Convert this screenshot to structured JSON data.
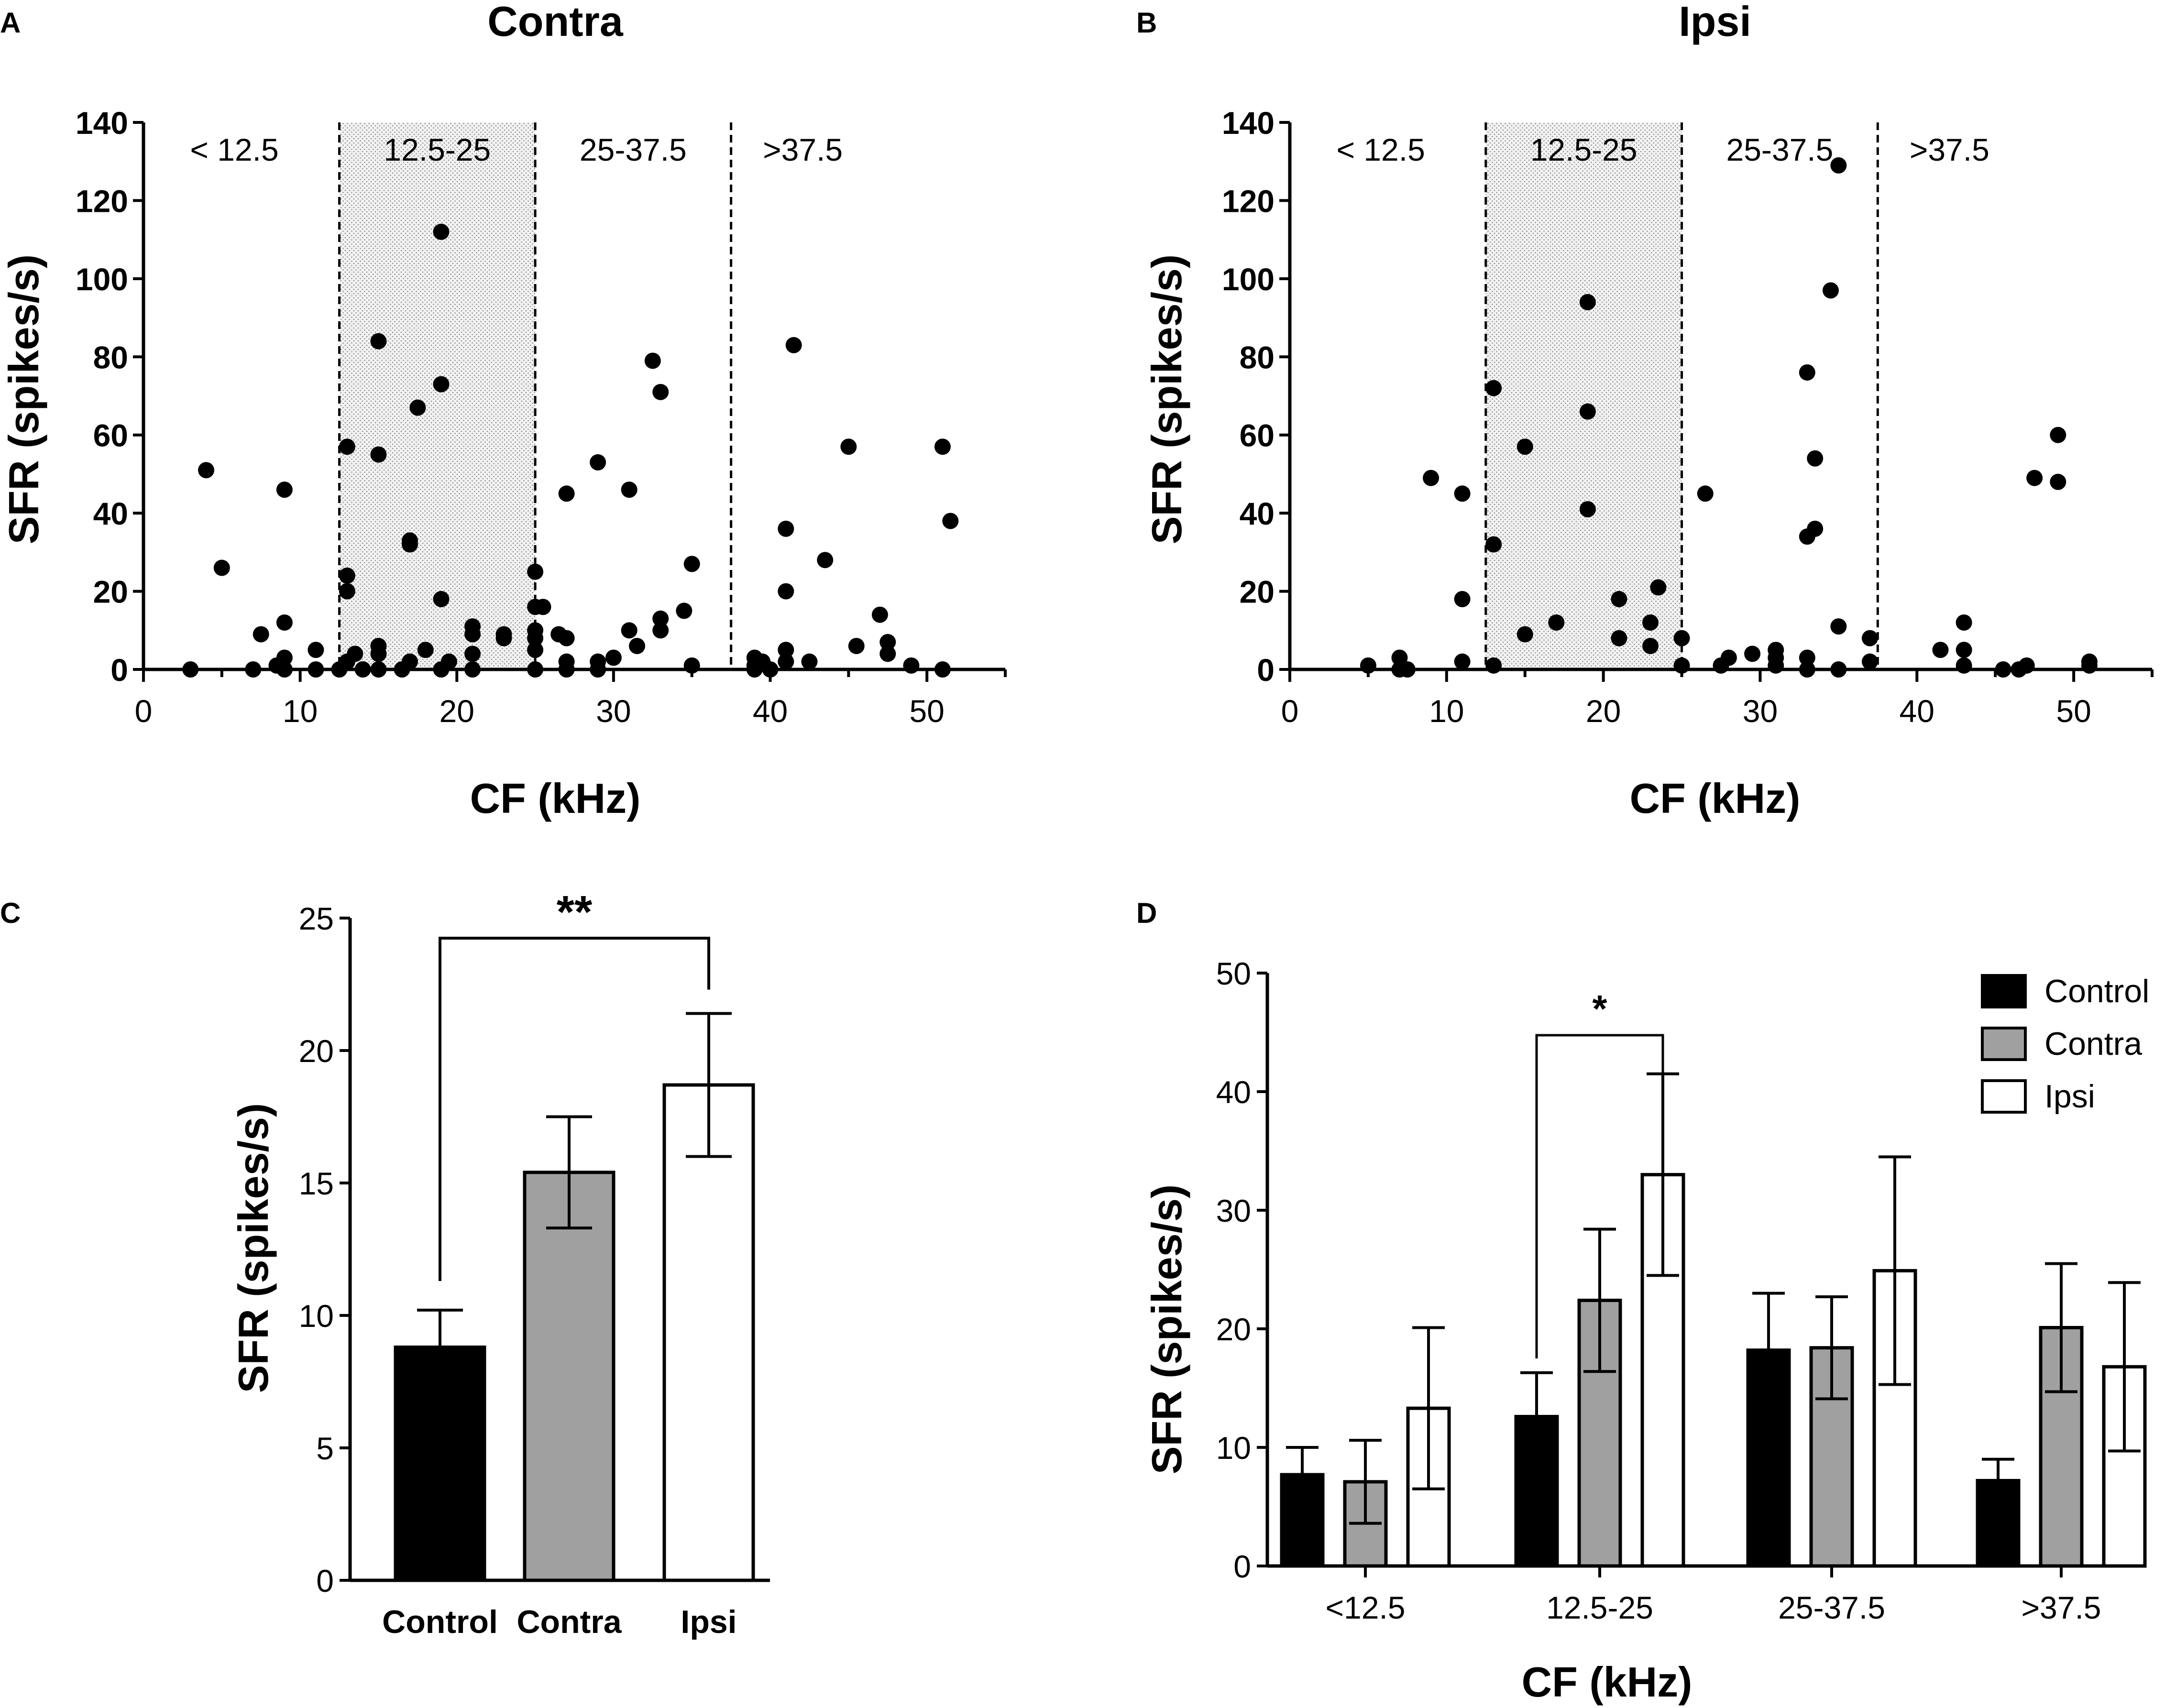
{
  "chart_data": [
    {
      "panel": "A",
      "type": "scatter",
      "title": "Contra",
      "xlabel": "CF (kHz)",
      "ylabel": "SFR (spikes/s)",
      "xlim": [
        0,
        55
      ],
      "ylim": [
        0,
        140
      ],
      "xticks": [
        "0",
        "10",
        "20",
        "30",
        "40",
        "50"
      ],
      "yticks": [
        "0",
        "20",
        "40",
        "60",
        "80",
        "100",
        "120",
        "140"
      ],
      "regions": [
        "< 12.5",
        "12.5-25",
        "25-37.5",
        ">37.5"
      ],
      "region_bounds": [
        12.5,
        25,
        37.5
      ],
      "shaded_region": [
        12.5,
        25
      ],
      "points": [
        [
          3,
          0
        ],
        [
          4,
          51
        ],
        [
          5,
          26
        ],
        [
          7,
          0
        ],
        [
          7.5,
          9
        ],
        [
          8.5,
          1
        ],
        [
          9,
          46
        ],
        [
          9,
          12
        ],
        [
          9,
          3
        ],
        [
          9,
          0
        ],
        [
          11,
          5
        ],
        [
          11,
          0
        ],
        [
          12.5,
          0
        ],
        [
          13,
          57
        ],
        [
          13,
          24
        ],
        [
          13,
          20
        ],
        [
          13,
          2
        ],
        [
          13.5,
          4
        ],
        [
          14,
          0
        ],
        [
          15,
          84
        ],
        [
          15,
          55
        ],
        [
          15,
          6
        ],
        [
          15,
          4
        ],
        [
          15,
          0
        ],
        [
          16.5,
          0
        ],
        [
          17,
          33
        ],
        [
          17,
          32
        ],
        [
          17,
          2
        ],
        [
          17.5,
          67
        ],
        [
          18,
          5
        ],
        [
          19,
          112
        ],
        [
          19,
          73
        ],
        [
          19,
          18
        ],
        [
          19,
          0
        ],
        [
          19.5,
          2
        ],
        [
          21,
          11
        ],
        [
          21,
          9
        ],
        [
          21,
          4
        ],
        [
          21,
          0
        ],
        [
          23,
          9
        ],
        [
          23,
          8
        ],
        [
          25,
          25
        ],
        [
          25,
          16
        ],
        [
          25,
          10
        ],
        [
          25,
          8
        ],
        [
          25,
          5
        ],
        [
          25,
          0
        ],
        [
          25.5,
          16
        ],
        [
          26.5,
          9
        ],
        [
          27,
          45
        ],
        [
          27,
          8
        ],
        [
          27,
          2
        ],
        [
          27,
          0
        ],
        [
          29,
          53
        ],
        [
          29,
          2
        ],
        [
          29,
          0
        ],
        [
          30,
          3
        ],
        [
          31,
          46
        ],
        [
          31,
          10
        ],
        [
          31.5,
          6
        ],
        [
          32.5,
          79
        ],
        [
          33,
          71
        ],
        [
          33,
          13
        ],
        [
          33,
          10
        ],
        [
          34.5,
          15
        ],
        [
          35,
          27
        ],
        [
          35,
          1
        ],
        [
          39,
          3
        ],
        [
          39,
          1
        ],
        [
          39,
          0
        ],
        [
          39.5,
          2
        ],
        [
          40,
          0
        ],
        [
          41,
          36
        ],
        [
          41,
          20
        ],
        [
          41,
          5
        ],
        [
          41,
          2
        ],
        [
          41.5,
          83
        ],
        [
          42.5,
          2
        ],
        [
          43.5,
          28
        ],
        [
          45,
          57
        ],
        [
          45.5,
          6
        ],
        [
          47,
          14
        ],
        [
          47.5,
          7
        ],
        [
          47.5,
          4
        ],
        [
          49,
          1
        ],
        [
          51,
          57
        ],
        [
          51,
          0
        ],
        [
          51.5,
          38
        ]
      ]
    },
    {
      "panel": "B",
      "type": "scatter",
      "title": "Ipsi",
      "xlabel": "CF (kHz)",
      "ylabel": "SFR (spikes/s)",
      "xlim": [
        0,
        55
      ],
      "ylim": [
        0,
        140
      ],
      "xticks": [
        "0",
        "10",
        "20",
        "30",
        "40",
        "50"
      ],
      "yticks": [
        "0",
        "20",
        "40",
        "60",
        "80",
        "100",
        "120",
        "140"
      ],
      "regions": [
        "< 12.5",
        "12.5-25",
        "25-37.5",
        ">37.5"
      ],
      "region_bounds": [
        12.5,
        25,
        37.5
      ],
      "shaded_region": [
        12.5,
        25
      ],
      "points": [
        [
          5,
          1
        ],
        [
          7,
          3
        ],
        [
          7,
          0
        ],
        [
          7.5,
          0
        ],
        [
          9,
          49
        ],
        [
          11,
          45
        ],
        [
          11,
          18
        ],
        [
          11,
          2
        ],
        [
          13,
          72
        ],
        [
          13,
          32
        ],
        [
          13,
          1
        ],
        [
          15,
          57
        ],
        [
          15,
          9
        ],
        [
          17,
          12
        ],
        [
          19,
          94
        ],
        [
          19,
          66
        ],
        [
          19,
          41
        ],
        [
          21,
          18
        ],
        [
          21,
          8
        ],
        [
          23,
          12
        ],
        [
          23,
          6
        ],
        [
          23.5,
          21
        ],
        [
          25,
          8
        ],
        [
          25,
          1
        ],
        [
          26.5,
          45
        ],
        [
          27.5,
          1
        ],
        [
          28,
          3
        ],
        [
          29.5,
          4
        ],
        [
          31,
          5
        ],
        [
          31,
          3
        ],
        [
          31,
          1
        ],
        [
          33,
          76
        ],
        [
          33,
          34
        ],
        [
          33,
          3
        ],
        [
          33,
          0
        ],
        [
          33.5,
          54
        ],
        [
          33.5,
          36
        ],
        [
          34.5,
          97
        ],
        [
          35,
          129
        ],
        [
          35,
          11
        ],
        [
          35,
          0
        ],
        [
          37,
          8
        ],
        [
          37,
          2
        ],
        [
          41.5,
          5
        ],
        [
          43,
          12
        ],
        [
          43,
          5
        ],
        [
          43,
          1
        ],
        [
          45.5,
          0
        ],
        [
          46.5,
          0
        ],
        [
          47,
          1
        ],
        [
          47.5,
          49
        ],
        [
          49,
          60
        ],
        [
          49,
          48
        ],
        [
          51,
          2
        ],
        [
          51,
          1
        ]
      ]
    },
    {
      "panel": "C",
      "type": "bar",
      "title": "",
      "xlabel": "",
      "ylabel": "SFR (spikes/s)",
      "ylim": [
        0,
        25
      ],
      "yticks": [
        "0",
        "5",
        "10",
        "15",
        "20",
        "25"
      ],
      "categories": [
        "Control",
        "Contra",
        "Ipsi"
      ],
      "values": [
        8.8,
        15.4,
        18.7
      ],
      "errors": [
        1.4,
        2.1,
        2.7
      ],
      "colors": [
        "#000000",
        "#a0a0a0",
        "#ffffff"
      ],
      "significance": {
        "from": "Control",
        "to": "Ipsi",
        "label": "**"
      }
    },
    {
      "panel": "D",
      "type": "bar",
      "title": "",
      "xlabel": "CF (kHz)",
      "ylabel": "SFR (spikes/s)",
      "ylim": [
        0,
        50
      ],
      "yticks": [
        "0",
        "10",
        "20",
        "30",
        "40",
        "50"
      ],
      "categories": [
        "<12.5",
        "12.5-25",
        "25-37.5",
        ">37.5"
      ],
      "series": [
        {
          "name": "Control",
          "color": "#000000",
          "values": [
            7.7,
            12.6,
            18.2,
            7.2
          ],
          "errors": [
            2.3,
            3.7,
            4.8,
            1.8
          ]
        },
        {
          "name": "Contra",
          "color": "#a0a0a0",
          "values": [
            7.1,
            22.4,
            18.4,
            20.1
          ],
          "errors": [
            3.5,
            6.0,
            4.3,
            5.4
          ]
        },
        {
          "name": "Ipsi",
          "color": "#ffffff",
          "values": [
            13.3,
            33.0,
            24.9,
            16.8
          ],
          "errors": [
            6.8,
            8.5,
            9.6,
            7.1
          ]
        }
      ],
      "legend_position": "top-right",
      "significance": {
        "category": "12.5-25",
        "from": "Control",
        "to": "Ipsi",
        "label": "*"
      }
    }
  ],
  "panel_labels": [
    "A",
    "B",
    "C",
    "D"
  ]
}
